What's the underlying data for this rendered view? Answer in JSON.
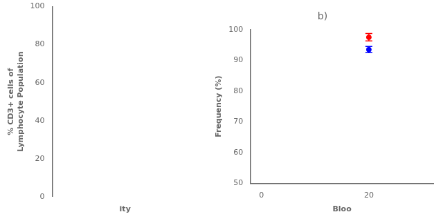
{
  "chart_data": [
    {
      "type": "scatter",
      "ylabel": "% CD3+ cells of\nLymphocyte Population",
      "xlabel": "ity",
      "xlim": [
        0,
        1
      ],
      "ylim": [
        0,
        100
      ],
      "yticks": [
        0,
        20,
        40,
        60,
        80,
        100
      ],
      "tick_labels": "y",
      "grid": false
    },
    {
      "type": "scatter",
      "title": "b)",
      "ylabel": "Frequency (%)",
      "xlabel": "Bloo",
      "xlim": [
        -2,
        32
      ],
      "xticks": [
        0,
        20
      ],
      "ylim": [
        50,
        100
      ],
      "yticks": [
        50,
        60,
        70,
        80,
        90,
        100
      ],
      "grid": false,
      "series": [
        {
          "color": "#FF0000",
          "marker": "circle",
          "x": [
            20
          ],
          "values": [
            97.5
          ],
          "yerr": [
            1.2
          ]
        },
        {
          "color": "#0000FF",
          "marker": "circle",
          "x": [
            20
          ],
          "values": [
            93.5
          ],
          "yerr": [
            1.0
          ]
        }
      ]
    }
  ]
}
